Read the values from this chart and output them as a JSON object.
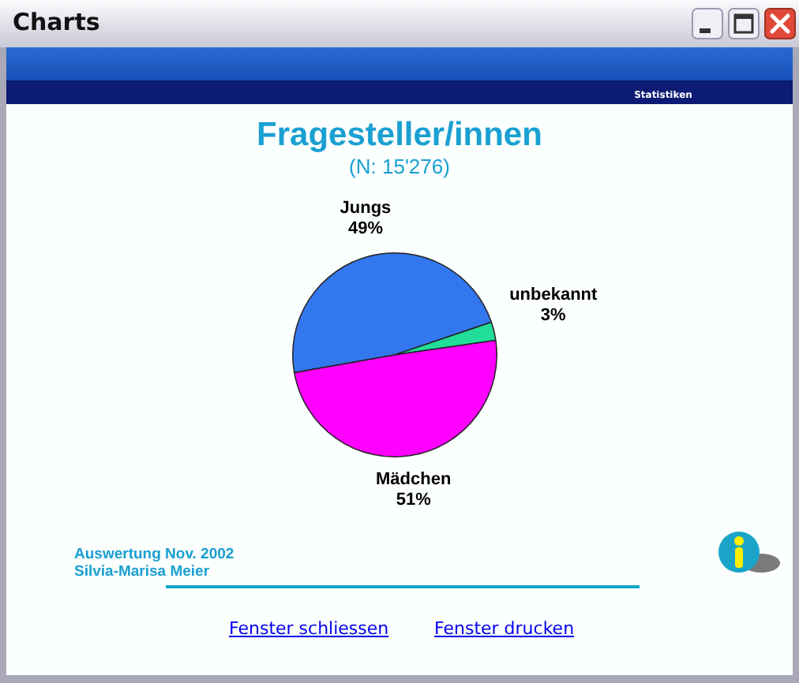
{
  "chart_data": {
    "type": "pie",
    "title": "Fragesteller/innen",
    "subtitle": "(N: 15'276)",
    "categories": [
      "Jungs",
      "unbekannt",
      "Mädchen"
    ],
    "values": [
      49,
      3,
      51
    ],
    "colors": [
      "#3377ee",
      "#22dd99",
      "#ff00ff"
    ],
    "value_labels": [
      "49%",
      "3%",
      "51%"
    ],
    "annotations": [
      "Charts",
      "Statistiken",
      "Auswertung Nov. 2002",
      "Silvia-Marisa Meier",
      "Fenster schliessen",
      "Fenster drucken"
    ]
  }
}
